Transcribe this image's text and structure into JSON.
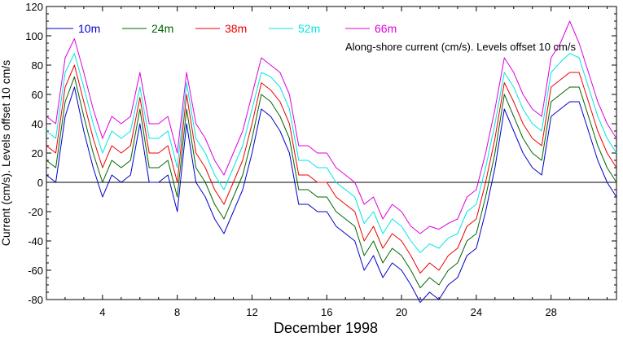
{
  "chart_data": {
    "type": "line",
    "title": "",
    "annotation": "Along-shore current (cm/s). Levels offset 10 cm/s",
    "xlabel": "December 1998",
    "ylabel": "Current (cm/s). Levels offset 10 cm/s",
    "xlim": [
      1,
      31.5
    ],
    "ylim": [
      -80,
      120
    ],
    "x_ticks": [
      4,
      8,
      12,
      16,
      20,
      24,
      28
    ],
    "x_tick_labels": [
      "4",
      "8",
      "12",
      "16",
      "20",
      "24",
      "28"
    ],
    "y_ticks": [
      -80,
      -60,
      -40,
      -20,
      0,
      20,
      40,
      60,
      80,
      100,
      120
    ],
    "y_tick_labels": [
      "-80",
      "-60",
      "-40",
      "-20",
      "0",
      "20",
      "40",
      "60",
      "80",
      "100",
      "120"
    ],
    "zero_line": 0,
    "legend_position": "top-left",
    "x": [
      1.0,
      1.5,
      2.0,
      2.5,
      3.0,
      3.5,
      4.0,
      4.5,
      5.0,
      5.5,
      6.0,
      6.5,
      7.0,
      7.5,
      8.0,
      8.5,
      9.0,
      9.5,
      10.0,
      10.5,
      11.0,
      11.5,
      12.0,
      12.5,
      13.0,
      13.5,
      14.0,
      14.5,
      15.0,
      15.5,
      16.0,
      16.5,
      17.0,
      17.5,
      18.0,
      18.5,
      19.0,
      19.5,
      20.0,
      20.5,
      21.0,
      21.5,
      22.0,
      22.5,
      23.0,
      23.5,
      24.0,
      24.5,
      25.0,
      25.5,
      26.0,
      26.5,
      27.0,
      27.5,
      28.0,
      28.5,
      29.0,
      29.5,
      30.0,
      30.5,
      31.0,
      31.5
    ],
    "series": [
      {
        "name": "10m",
        "color": "#0000cc",
        "values": [
          5,
          0,
          45,
          65,
          35,
          10,
          -10,
          5,
          0,
          5,
          40,
          0,
          0,
          5,
          -20,
          40,
          0,
          -10,
          -25,
          -35,
          -20,
          -5,
          20,
          50,
          45,
          35,
          20,
          -15,
          -15,
          -20,
          -20,
          -30,
          -35,
          -40,
          -60,
          -50,
          -65,
          -55,
          -60,
          -70,
          -82,
          -75,
          -80,
          -70,
          -65,
          -50,
          -45,
          -20,
          10,
          50,
          35,
          20,
          10,
          5,
          45,
          50,
          55,
          55,
          35,
          15,
          0,
          -10
        ]
      },
      {
        "name": "24m",
        "color": "#006600",
        "values": [
          15,
          10,
          55,
          72,
          45,
          20,
          0,
          15,
          10,
          15,
          50,
          10,
          10,
          15,
          -10,
          50,
          10,
          0,
          -15,
          -25,
          -10,
          5,
          30,
          60,
          55,
          45,
          30,
          -5,
          -5,
          -10,
          -10,
          -20,
          -25,
          -30,
          -50,
          -40,
          -55,
          -45,
          -50,
          -60,
          -72,
          -65,
          -70,
          -60,
          -55,
          -40,
          -35,
          -10,
          20,
          60,
          45,
          30,
          20,
          15,
          55,
          60,
          65,
          65,
          45,
          25,
          10,
          0
        ]
      },
      {
        "name": "38m",
        "color": "#ee0000",
        "values": [
          25,
          20,
          65,
          80,
          55,
          30,
          10,
          25,
          20,
          25,
          58,
          20,
          20,
          25,
          0,
          60,
          20,
          10,
          -5,
          -15,
          0,
          15,
          40,
          68,
          63,
          55,
          40,
          5,
          5,
          0,
          0,
          -10,
          -15,
          -20,
          -40,
          -30,
          -45,
          -35,
          -40,
          -50,
          -62,
          -55,
          -60,
          -50,
          -45,
          -30,
          -25,
          0,
          30,
          68,
          55,
          40,
          30,
          25,
          65,
          70,
          75,
          75,
          55,
          35,
          20,
          10
        ]
      },
      {
        "name": "52m",
        "color": "#00e5e5",
        "values": [
          35,
          30,
          75,
          88,
          65,
          40,
          20,
          35,
          30,
          35,
          65,
          30,
          30,
          35,
          10,
          68,
          30,
          20,
          5,
          -5,
          10,
          25,
          50,
          75,
          72,
          65,
          50,
          15,
          15,
          10,
          10,
          0,
          -5,
          -10,
          -28,
          -20,
          -35,
          -25,
          -30,
          -40,
          -48,
          -42,
          -45,
          -38,
          -35,
          -20,
          -15,
          10,
          40,
          75,
          65,
          50,
          40,
          35,
          75,
          82,
          88,
          85,
          65,
          45,
          30,
          20
        ]
      },
      {
        "name": "66m",
        "color": "#dd00dd",
        "values": [
          45,
          40,
          85,
          98,
          75,
          50,
          30,
          45,
          40,
          45,
          75,
          40,
          40,
          45,
          20,
          75,
          40,
          30,
          15,
          5,
          20,
          35,
          60,
          85,
          80,
          75,
          60,
          25,
          25,
          20,
          20,
          10,
          5,
          0,
          -15,
          -10,
          -25,
          -15,
          -20,
          -30,
          -35,
          -30,
          -32,
          -28,
          -25,
          -10,
          -5,
          20,
          50,
          85,
          75,
          60,
          50,
          45,
          85,
          95,
          110,
          95,
          75,
          55,
          40,
          30
        ]
      }
    ]
  }
}
